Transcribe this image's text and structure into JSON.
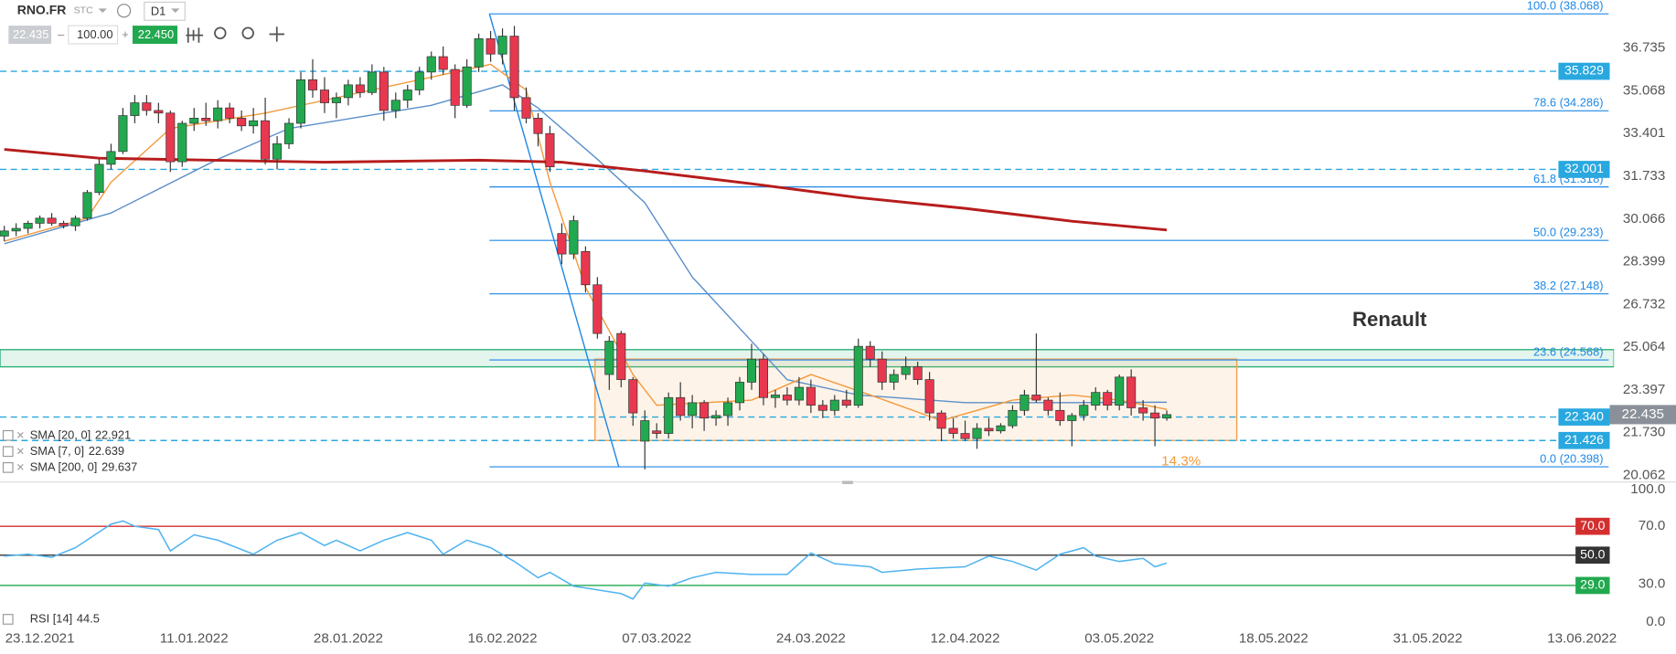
{
  "header": {
    "symbol": "RNO.FR",
    "market": "STC",
    "interval": "D1",
    "bid": "22.435",
    "quantity": "100.00",
    "ask": "22.450"
  },
  "chart_data": [
    {
      "type": "candlestick",
      "xlim": [
        -0.36,
        135.7
      ],
      "ylim": [
        19.85,
        38.61
      ],
      "yticks": [
        36.735,
        35.068,
        33.401,
        31.733,
        30.066,
        28.399,
        26.732,
        25.064,
        23.397,
        {
          "value": 21.73,
          "label": "21.730"
        },
        20.062
      ],
      "up_color": "#22a94f",
      "down_color": "#e8384f",
      "last": 22.435,
      "ohlc": [
        [
          29.4,
          29.8,
          29.2,
          29.6
        ],
        [
          29.6,
          29.9,
          29.4,
          29.7
        ],
        [
          29.7,
          30.0,
          29.5,
          29.9
        ],
        [
          29.9,
          30.2,
          29.7,
          30.1
        ],
        [
          30.1,
          30.3,
          29.8,
          29.9
        ],
        [
          29.9,
          30.0,
          29.7,
          29.8
        ],
        [
          29.8,
          30.2,
          29.6,
          30.1
        ],
        [
          30.1,
          31.2,
          30.0,
          31.1
        ],
        [
          31.1,
          32.4,
          31.0,
          32.2
        ],
        [
          32.2,
          33.0,
          32.0,
          32.7
        ],
        [
          32.7,
          34.4,
          32.6,
          34.1
        ],
        [
          34.1,
          34.9,
          33.8,
          34.6
        ],
        [
          34.6,
          34.9,
          34.1,
          34.3
        ],
        [
          34.3,
          34.6,
          33.8,
          34.2
        ],
        [
          34.2,
          34.3,
          31.9,
          32.3
        ],
        [
          32.3,
          33.9,
          32.1,
          33.8
        ],
        [
          33.8,
          34.4,
          33.5,
          34.0
        ],
        [
          34.0,
          34.6,
          33.7,
          33.9
        ],
        [
          33.9,
          34.7,
          33.6,
          34.4
        ],
        [
          34.4,
          34.6,
          33.8,
          34.0
        ],
        [
          34.0,
          34.3,
          33.5,
          33.7
        ],
        [
          33.7,
          34.4,
          33.4,
          33.9
        ],
        [
          33.9,
          34.8,
          32.2,
          32.4
        ],
        [
          32.4,
          33.3,
          32.0,
          33.0
        ],
        [
          33.0,
          34.0,
          32.8,
          33.8
        ],
        [
          33.8,
          35.8,
          33.6,
          35.5
        ],
        [
          35.5,
          36.3,
          34.8,
          35.1
        ],
        [
          35.1,
          35.6,
          34.2,
          34.6
        ],
        [
          34.6,
          35.0,
          34.0,
          34.8
        ],
        [
          34.8,
          35.5,
          34.5,
          35.3
        ],
        [
          35.3,
          35.6,
          34.8,
          35.0
        ],
        [
          35.0,
          36.1,
          34.9,
          35.8
        ],
        [
          35.8,
          36.0,
          33.9,
          34.3
        ],
        [
          34.3,
          35.0,
          34.0,
          34.7
        ],
        [
          34.7,
          35.3,
          34.4,
          35.1
        ],
        [
          35.1,
          36.0,
          34.9,
          35.8
        ],
        [
          35.8,
          36.6,
          35.5,
          36.4
        ],
        [
          36.4,
          36.8,
          35.7,
          35.9
        ],
        [
          35.9,
          36.1,
          34.0,
          34.5
        ],
        [
          34.5,
          36.3,
          34.4,
          36.0
        ],
        [
          36.0,
          37.3,
          35.8,
          37.1
        ],
        [
          37.1,
          37.4,
          36.2,
          36.5
        ],
        [
          36.5,
          37.5,
          36.1,
          37.2
        ],
        [
          37.2,
          37.6,
          34.3,
          34.8
        ],
        [
          34.8,
          35.2,
          33.8,
          34.0
        ],
        [
          34.0,
          34.2,
          32.9,
          33.4
        ],
        [
          33.4,
          33.7,
          31.9,
          32.1
        ],
        [
          29.5,
          29.9,
          28.3,
          28.7
        ],
        [
          28.7,
          30.2,
          28.5,
          30.0
        ],
        [
          28.8,
          29.0,
          27.2,
          27.5
        ],
        [
          27.5,
          27.8,
          25.4,
          25.6
        ],
        [
          24.0,
          25.5,
          23.4,
          25.3
        ],
        [
          25.6,
          25.7,
          23.5,
          23.8
        ],
        [
          23.8,
          23.9,
          22.0,
          22.5
        ],
        [
          21.4,
          22.6,
          20.3,
          22.2
        ],
        [
          21.8,
          22.1,
          21.5,
          21.7
        ],
        [
          21.7,
          23.3,
          21.5,
          23.1
        ],
        [
          23.1,
          23.7,
          22.2,
          22.4
        ],
        [
          22.4,
          23.2,
          21.9,
          22.9
        ],
        [
          22.9,
          23.0,
          21.8,
          22.3
        ],
        [
          22.3,
          22.6,
          22.0,
          22.4
        ],
        [
          22.4,
          23.1,
          22.0,
          22.9
        ],
        [
          22.9,
          23.9,
          22.6,
          23.7
        ],
        [
          23.7,
          25.2,
          23.4,
          24.6
        ],
        [
          24.6,
          24.8,
          22.8,
          23.1
        ],
        [
          23.1,
          23.4,
          22.7,
          23.2
        ],
        [
          23.2,
          23.5,
          22.8,
          23.0
        ],
        [
          23.0,
          23.9,
          22.8,
          23.5
        ],
        [
          23.5,
          23.8,
          22.5,
          22.8
        ],
        [
          22.8,
          23.0,
          22.3,
          22.6
        ],
        [
          22.6,
          23.2,
          22.4,
          23.0
        ],
        [
          23.0,
          23.4,
          22.7,
          22.8
        ],
        [
          22.8,
          25.4,
          22.7,
          25.1
        ],
        [
          25.1,
          25.3,
          24.3,
          24.6
        ],
        [
          24.6,
          24.9,
          23.4,
          23.7
        ],
        [
          23.7,
          24.2,
          23.4,
          24.0
        ],
        [
          24.0,
          24.7,
          23.8,
          24.3
        ],
        [
          24.3,
          24.5,
          23.6,
          23.8
        ],
        [
          23.8,
          24.1,
          22.2,
          22.5
        ],
        [
          22.5,
          22.6,
          21.4,
          21.9
        ],
        [
          21.9,
          22.3,
          21.5,
          21.7
        ],
        [
          21.7,
          22.2,
          21.4,
          21.5
        ],
        [
          21.5,
          22.1,
          21.1,
          21.9
        ],
        [
          21.9,
          22.3,
          21.6,
          21.8
        ],
        [
          21.8,
          22.1,
          21.7,
          22.0
        ],
        [
          22.0,
          22.8,
          21.9,
          22.6
        ],
        [
          22.6,
          23.4,
          22.4,
          23.2
        ],
        [
          23.2,
          25.6,
          22.9,
          23.0
        ],
        [
          23.0,
          23.1,
          22.4,
          22.6
        ],
        [
          22.6,
          23.3,
          22.0,
          22.2
        ],
        [
          22.2,
          22.5,
          21.2,
          22.4
        ],
        [
          22.4,
          23.0,
          22.2,
          22.8
        ],
        [
          22.8,
          23.5,
          22.6,
          23.3
        ],
        [
          23.3,
          23.4,
          22.6,
          22.8
        ],
        [
          22.8,
          24.0,
          22.6,
          23.9
        ],
        [
          23.9,
          24.2,
          22.4,
          22.7
        ],
        [
          22.7,
          23.0,
          22.2,
          22.5
        ],
        [
          22.5,
          22.8,
          21.2,
          22.3
        ],
        [
          22.3,
          22.6,
          22.2,
          22.435
        ]
      ],
      "series": [
        {
          "name": "SMA [20, 0]",
          "legend_value": 22.921,
          "color": "#5b8fc9",
          "x": [
            0,
            9,
            18,
            24,
            36,
            42,
            45,
            50,
            54,
            58,
            63,
            66,
            72,
            81,
            90,
            98
          ],
          "values": [
            29.1,
            30.3,
            32.4,
            33.6,
            34.5,
            35.3,
            34.4,
            32.4,
            30.7,
            27.8,
            25.3,
            23.8,
            23.2,
            22.9,
            22.9,
            22.92
          ]
        },
        {
          "name": "SMA [7, 0]",
          "legend_value": 22.639,
          "color": "#f39a3c",
          "x": [
            0,
            7,
            9,
            14,
            22,
            29,
            37,
            41,
            44,
            46,
            49,
            53,
            55,
            63,
            68,
            73,
            79,
            85,
            90,
            94,
            98
          ],
          "values": [
            29.2,
            30.1,
            31.5,
            33.6,
            34.2,
            34.9,
            35.7,
            36.1,
            35.1,
            31.5,
            27.4,
            24.0,
            22.8,
            23.0,
            24.0,
            23.2,
            22.2,
            23.0,
            23.2,
            23.0,
            22.64
          ]
        },
        {
          "name": "SMA [200, 0]",
          "legend_value": 29.637,
          "color": "#b71c1c",
          "x": [
            0,
            8,
            27,
            40,
            47,
            54,
            63,
            72,
            81,
            90,
            98
          ],
          "values": [
            32.78,
            32.44,
            32.28,
            32.36,
            32.28,
            31.94,
            31.44,
            30.9,
            30.48,
            29.98,
            29.64
          ]
        }
      ],
      "fibonacci": {
        "color": "#1e88e5",
        "anchor_x": [
          40.9,
          51.8
        ],
        "levels": [
          {
            "value": 38.068,
            "label": "100.0 (38.068)"
          },
          {
            "value": 34.286,
            "label": "78.6 (34.286)"
          },
          {
            "value": 31.318,
            "label": "61.8 (31.318)"
          },
          {
            "value": 29.233,
            "label": "50.0 (29.233)"
          },
          {
            "value": 27.148,
            "label": "38.2 (27.148)"
          },
          {
            "value": 24.568,
            "label": "23.6 (24.568)"
          },
          {
            "value": 20.398,
            "label": "0.0 (20.398)"
          }
        ]
      },
      "levels": [
        {
          "value": 35.829
        },
        {
          "value": 32.001
        },
        {
          "value": 22.34,
          "label": "22.340"
        },
        {
          "value": 21.426
        }
      ],
      "level_color": "#29a8e0",
      "zones": [
        {
          "color": "#2fb27a",
          "ylim": [
            24.3,
            24.97
          ]
        },
        {
          "color": "#f5a04a",
          "xlim": [
            49.8,
            103.9
          ],
          "ylim": [
            21.426,
            24.6
          ]
        }
      ],
      "annotations": [
        "Renault",
        "14.3%"
      ]
    },
    {
      "type": "line",
      "name": "RSI [14]",
      "legend_value": 44.5,
      "color": "#4fb3f0",
      "xlim": [
        -0.36,
        135.7
      ],
      "ylim": [
        0,
        100
      ],
      "yticks": [
        {
          "value": 100,
          "label": "100.0"
        },
        {
          "value": 70,
          "label": "70.0"
        },
        {
          "value": 30,
          "label": "30.0"
        },
        {
          "value": 0,
          "label": "0.0"
        }
      ],
      "xticks": [
        {
          "value": 3,
          "label": "23.12.2021"
        },
        {
          "value": 16,
          "label": "11.01.2022"
        },
        {
          "value": 29,
          "label": "28.01.2022"
        },
        {
          "value": 42,
          "label": "16.02.2022"
        },
        {
          "value": 55,
          "label": "07.03.2022"
        },
        {
          "value": 68,
          "label": "24.03.2022"
        },
        {
          "value": 81,
          "label": "12.04.2022"
        },
        {
          "value": 94,
          "label": "03.05.2022"
        },
        {
          "value": 107,
          "label": "18.05.2022"
        },
        {
          "value": 120,
          "label": "31.05.2022"
        },
        {
          "value": 133,
          "label": "13.06.2022"
        }
      ],
      "levels": [
        {
          "value": 70,
          "label": "70.0",
          "color": "#d32f2f"
        },
        {
          "value": 50,
          "label": "50.0",
          "color": "#333333"
        },
        {
          "value": 29,
          "label": "29.0",
          "color": "#22a94f"
        }
      ],
      "x": [
        0,
        2,
        4,
        6,
        9,
        10,
        11,
        13,
        14,
        16,
        18,
        21,
        23,
        25,
        27,
        28,
        30,
        32,
        34,
        36,
        37,
        39,
        41,
        43,
        45,
        46,
        48,
        52,
        53,
        54,
        56,
        58,
        60,
        63,
        66,
        68,
        70,
        73,
        74,
        77,
        81,
        83,
        85,
        87,
        89,
        91,
        92,
        94,
        96,
        97,
        98
      ],
      "values": [
        49.3,
        50.7,
        48.5,
        55.2,
        71.5,
        73.7,
        70.0,
        67.8,
        53.0,
        64.1,
        60.4,
        50.7,
        60.4,
        65.6,
        56.7,
        60.4,
        53.0,
        60.4,
        65.6,
        60.4,
        50.7,
        60.4,
        55.2,
        45.6,
        34.4,
        38.1,
        28.5,
        23.3,
        19.6,
        30.7,
        28.5,
        34.4,
        38.1,
        36.7,
        36.7,
        51.5,
        44.1,
        41.9,
        38.1,
        40.4,
        41.9,
        49.3,
        45.6,
        39.6,
        50.7,
        55.2,
        49.3,
        45.6,
        47.8,
        41.9,
        44.5
      ]
    }
  ]
}
